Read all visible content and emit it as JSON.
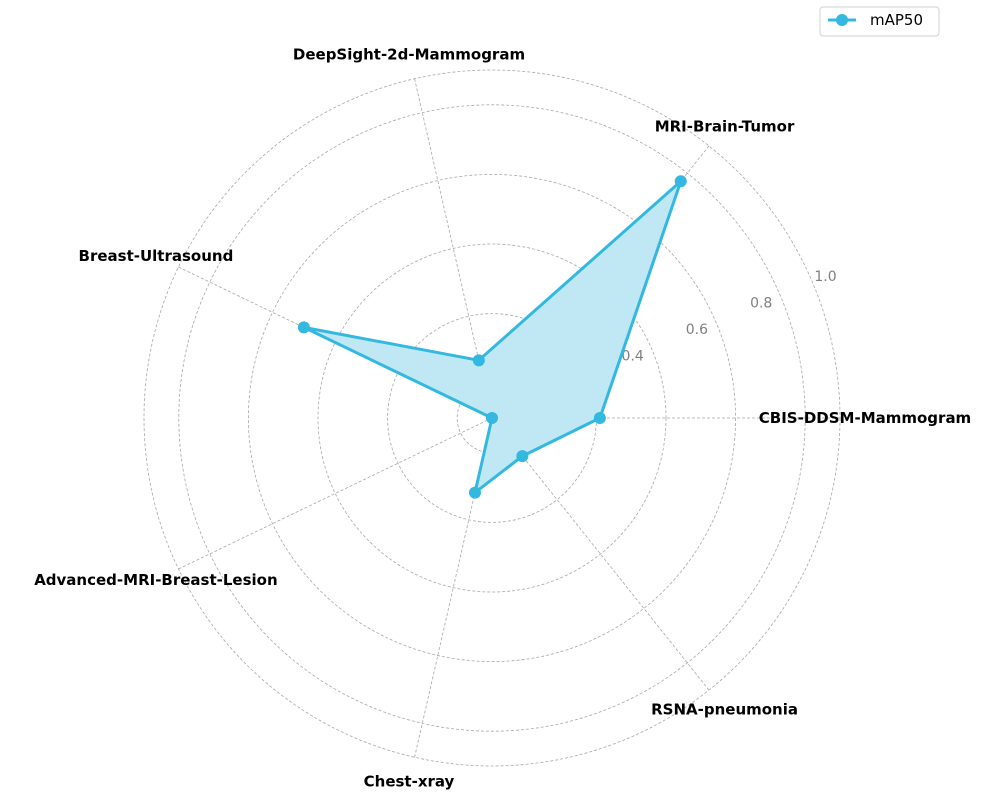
{
  "chart_data": {
    "type": "radar",
    "categories": [
      "CBIS-DDSM-Mammogram",
      "MRI-Brain-Tumor",
      "DeepSight-2d-Mammogram",
      "Breast-Ultrasound",
      "Advanced-MRI-Breast-Lesion",
      "Chest-xray",
      "RSNA-pneumonia"
    ],
    "series": [
      {
        "name": "mAP50",
        "values": [
          0.31,
          0.87,
          0.17,
          0.6,
          0.0,
          0.22,
          0.14
        ]
      }
    ],
    "rlim": [
      0.0,
      1.0
    ],
    "rticks": [
      "0.0",
      "0.2",
      "0.4",
      "0.6",
      "0.8",
      "1.0"
    ],
    "grid": true,
    "legend": "top-right",
    "colors": {
      "line": "#33b8e0",
      "fill": "#bfe8f4",
      "grid": "#a8a8a8",
      "tick": "#808080"
    }
  }
}
